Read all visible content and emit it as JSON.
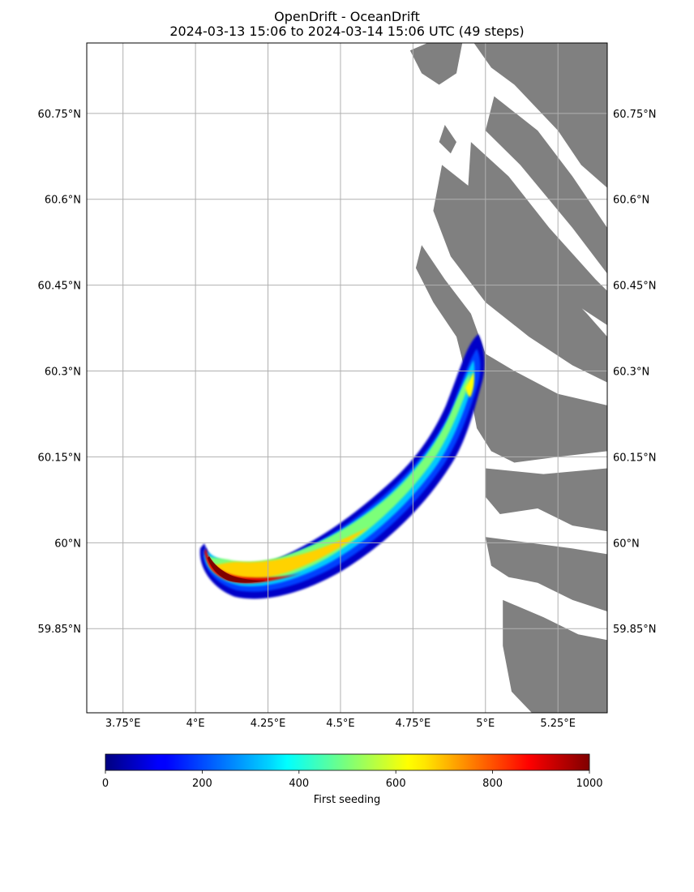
{
  "title": {
    "line1": "OpenDrift - OceanDrift",
    "line2": "2024-03-13 15:06 to 2024-03-14 15:06 UTC (49 steps)"
  },
  "map": {
    "lon_range": [
      3.625,
      5.42
    ],
    "lat_range": [
      59.703,
      60.873
    ],
    "lon_ticks": [
      {
        "value": 3.75,
        "label": "3.75°E"
      },
      {
        "value": 4.0,
        "label": "4°E"
      },
      {
        "value": 4.25,
        "label": "4.25°E"
      },
      {
        "value": 4.5,
        "label": "4.5°E"
      },
      {
        "value": 4.75,
        "label": "4.75°E"
      },
      {
        "value": 5.0,
        "label": "5°E"
      },
      {
        "value": 5.25,
        "label": "5.25°E"
      }
    ],
    "lat_ticks": [
      {
        "value": 60.75,
        "label": "60.75°N"
      },
      {
        "value": 60.6,
        "label": "60.6°N"
      },
      {
        "value": 60.45,
        "label": "60.45°N"
      },
      {
        "value": 60.3,
        "label": "60.3°N"
      },
      {
        "value": 60.15,
        "label": "60.15°N"
      },
      {
        "value": 60.0,
        "label": "60°N"
      },
      {
        "value": 59.85,
        "label": "59.85°N"
      }
    ],
    "land_color": "#808080",
    "grid_color": "#b0b0b0",
    "land_polygons": [
      [
        [
          4.96,
          60.873
        ],
        [
          5.42,
          60.873
        ],
        [
          5.42,
          60.62
        ],
        [
          5.33,
          60.66
        ],
        [
          5.25,
          60.72
        ],
        [
          5.1,
          60.8
        ],
        [
          5.02,
          60.83
        ]
      ],
      [
        [
          5.03,
          60.78
        ],
        [
          5.18,
          60.72
        ],
        [
          5.3,
          60.64
        ],
        [
          5.42,
          60.55
        ],
        [
          5.42,
          60.47
        ],
        [
          5.3,
          60.55
        ],
        [
          5.12,
          60.66
        ],
        [
          5.0,
          60.72
        ]
      ],
      [
        [
          4.95,
          60.7
        ],
        [
          5.08,
          60.64
        ],
        [
          5.22,
          60.55
        ],
        [
          5.38,
          60.46
        ],
        [
          5.42,
          60.44
        ],
        [
          5.42,
          60.38
        ],
        [
          5.3,
          60.42
        ],
        [
          5.15,
          60.5
        ],
        [
          5.0,
          60.58
        ],
        [
          4.94,
          60.62
        ]
      ],
      [
        [
          4.85,
          60.66
        ],
        [
          4.95,
          60.62
        ],
        [
          5.08,
          60.55
        ],
        [
          5.2,
          60.48
        ],
        [
          5.35,
          60.4
        ],
        [
          5.42,
          60.36
        ],
        [
          5.42,
          60.28
        ],
        [
          5.3,
          60.31
        ],
        [
          5.15,
          60.36
        ],
        [
          5.0,
          60.42
        ],
        [
          4.88,
          60.5
        ],
        [
          4.82,
          60.58
        ]
      ],
      [
        [
          4.78,
          60.52
        ],
        [
          4.86,
          60.46
        ],
        [
          4.95,
          60.4
        ],
        [
          5.0,
          60.33
        ],
        [
          5.1,
          60.3
        ],
        [
          5.25,
          60.26
        ],
        [
          5.42,
          60.24
        ],
        [
          5.42,
          60.16
        ],
        [
          5.25,
          60.15
        ],
        [
          5.1,
          60.14
        ],
        [
          5.02,
          60.16
        ],
        [
          4.97,
          60.2
        ],
        [
          4.94,
          60.28
        ],
        [
          4.9,
          60.36
        ],
        [
          4.82,
          60.42
        ],
        [
          4.76,
          60.48
        ]
      ],
      [
        [
          5.0,
          60.13
        ],
        [
          5.2,
          60.12
        ],
        [
          5.42,
          60.13
        ],
        [
          5.42,
          60.02
        ],
        [
          5.3,
          60.03
        ],
        [
          5.18,
          60.06
        ],
        [
          5.05,
          60.05
        ],
        [
          5.0,
          60.08
        ]
      ],
      [
        [
          5.0,
          60.01
        ],
        [
          5.15,
          60.0
        ],
        [
          5.3,
          59.99
        ],
        [
          5.42,
          59.98
        ],
        [
          5.42,
          59.88
        ],
        [
          5.3,
          59.9
        ],
        [
          5.18,
          59.93
        ],
        [
          5.08,
          59.94
        ],
        [
          5.02,
          59.96
        ]
      ],
      [
        [
          5.06,
          59.9
        ],
        [
          5.2,
          59.87
        ],
        [
          5.32,
          59.84
        ],
        [
          5.42,
          59.83
        ],
        [
          5.42,
          59.703
        ],
        [
          5.16,
          59.703
        ],
        [
          5.09,
          59.74
        ],
        [
          5.06,
          59.82
        ]
      ],
      [
        [
          4.74,
          60.86
        ],
        [
          4.8,
          60.873
        ],
        [
          4.92,
          60.873
        ],
        [
          4.9,
          60.82
        ],
        [
          4.84,
          60.8
        ],
        [
          4.78,
          60.82
        ]
      ],
      [
        [
          4.86,
          60.73
        ],
        [
          4.9,
          60.7
        ],
        [
          4.88,
          60.68
        ],
        [
          4.84,
          60.7
        ]
      ]
    ]
  },
  "colorbar": {
    "ticks": [
      "0",
      "200",
      "400",
      "600",
      "800",
      "1000"
    ],
    "label": "First seeding",
    "min": 0,
    "max": 1000
  }
}
